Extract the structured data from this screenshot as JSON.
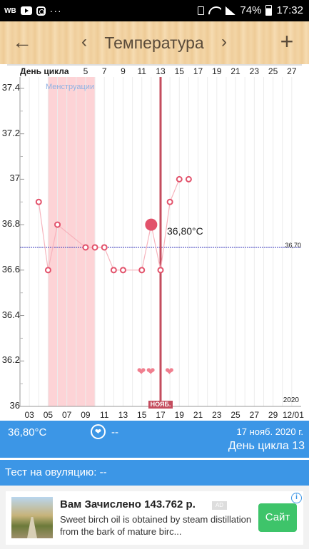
{
  "status_bar": {
    "carrier": "WB",
    "dots": "···",
    "battery": "74%",
    "time": "17:32",
    "icons": [
      "youtube-icon",
      "instagram-icon",
      "lock-icon",
      "wifi-icon",
      "signal-icon",
      "battery-icon"
    ]
  },
  "header": {
    "back_icon": "←",
    "prev_icon": "‹",
    "title": "Температура",
    "next_icon": "›",
    "add_icon": "+"
  },
  "chart_data": {
    "type": "line",
    "cycle_label": "День цикла",
    "cycle_ticks": [
      "5",
      "7",
      "9",
      "11",
      "13",
      "15",
      "17",
      "19",
      "21",
      "23",
      "25",
      "27"
    ],
    "date_ticks": [
      "03",
      "05",
      "07",
      "09",
      "11",
      "13",
      "15",
      "17",
      "19",
      "21",
      "23",
      "25",
      "27",
      "29",
      "12/01"
    ],
    "y_ticks": [
      "36",
      "36.2",
      "36.4",
      "36.6",
      "36.8",
      "37",
      "37.2",
      "37.4"
    ],
    "ylim": [
      36,
      37.45
    ],
    "x_domain_days": [
      2,
      32
    ],
    "series": [
      {
        "x": [
          4,
          5,
          6,
          9,
          10,
          11,
          12,
          13,
          15,
          16,
          17,
          18,
          19
        ],
        "values": [
          36.9,
          36.6,
          36.8,
          36.7,
          36.7,
          36.7,
          36.6,
          36.6,
          36.6,
          36.8,
          36.6,
          36.9,
          37.0
        ]
      }
    ],
    "extra_points": [
      {
        "x": 20,
        "value": 37.0
      }
    ],
    "coverline": {
      "value": 36.7,
      "label": "36,70"
    },
    "menstruation": {
      "from": 5,
      "to": 10,
      "label": "Менструации"
    },
    "ovulation_day": 17,
    "selected": {
      "x": 16,
      "value": 36.8,
      "label": "36,80°C"
    },
    "month_label": "НОЯБ.",
    "year_label": "2020",
    "hearts": [
      15,
      16,
      18
    ],
    "colors": {
      "point": "#e2526b",
      "line": "#f6b4bd",
      "menstruation": "#fdd3d6",
      "ovulation": "#c44c5e",
      "coverline": "#3a3abb",
      "heart": "#f07f8f"
    }
  },
  "info": {
    "temperature": "36,80°C",
    "heart_icon": "❤",
    "intercourse": "--",
    "date": "17 нояб. 2020 г.",
    "cycle_day": "День цикла 13"
  },
  "ovulation_test": {
    "label": "Тест на овуляцию: --"
  },
  "ad": {
    "title": "Вам Зачислено 143.762 р.",
    "badge": "AD",
    "text": "Sweet birch oil is obtained by steam distillation from the bark of mature birc...",
    "button": "Сайт",
    "info_icon": "i"
  }
}
